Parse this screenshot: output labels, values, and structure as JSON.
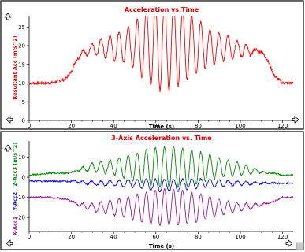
{
  "colors": {
    "frame": "#000000",
    "panel_bg": "#ffffff",
    "title": "#e00000",
    "resultant": "#ff0000",
    "x_axis": "#9a1a9a",
    "y_axis": "#1010ee",
    "z_axis": "#0a8a0a",
    "gray_bar": "#c8c8c8"
  },
  "icons": {
    "arrow_up": "up-arrow-icon",
    "arrow_left": "left-arrow-icon",
    "arrow_right": "right-arrow-icon",
    "resize": "resize-grip-icon"
  },
  "chart_data": [
    {
      "type": "line",
      "title": "Acceleration vs.Time",
      "xlabel": "Time (s)",
      "ylabel": "Resultant Acc (m/s^2)",
      "xlim": [
        0,
        125
      ],
      "ylim": [
        0,
        28
      ],
      "xticks": [
        "0",
        "20",
        "40",
        "60",
        "80",
        "100",
        "120"
      ],
      "yticks": [
        "0",
        "5",
        "10",
        "15",
        "20",
        "25"
      ],
      "grid": false,
      "series": [
        {
          "key": "resultant",
          "x": [
            0,
            10,
            17,
            20,
            22,
            25,
            30,
            35,
            40,
            45,
            50,
            55,
            60,
            62,
            65,
            70,
            75,
            80,
            85,
            90,
            95,
            100,
            105,
            110,
            113,
            116,
            120,
            125
          ],
          "y": [
            10,
            10,
            11,
            13,
            16,
            18,
            19,
            19.5,
            19.5,
            20,
            20,
            20,
            20,
            20,
            20,
            20,
            20,
            20,
            19.5,
            19.5,
            19.5,
            19,
            18.5,
            18.5,
            16,
            12,
            10,
            10
          ],
          "oscillation_amplitude": [
            0,
            0,
            0,
            0,
            0,
            0.5,
            1.5,
            2.5,
            3.5,
            4.5,
            6,
            10,
            11,
            12,
            12,
            11,
            9,
            7,
            5,
            4,
            3,
            2,
            1,
            0,
            0,
            0,
            0,
            0
          ],
          "period_s": 4.3
        }
      ]
    },
    {
      "type": "line",
      "title": "3-Axis Acceleration vs. Time",
      "xlabel": "Time (s)",
      "ylabel_parts": [
        "X-Acc1",
        "Y-Acc2",
        "Z-Acc3 (m/s^2)"
      ],
      "xlim": [
        0,
        125
      ],
      "ylim": [
        -27,
        18
      ],
      "xticks": [
        "0",
        "20",
        "40",
        "60",
        "80",
        "100",
        "120"
      ],
      "yticks": [
        "-20",
        "-10",
        "0",
        "10"
      ],
      "grid": false,
      "series": [
        {
          "key": "z",
          "x": [
            0,
            10,
            18,
            22,
            25,
            30,
            40,
            50,
            60,
            70,
            80,
            90,
            100,
            108,
            113,
            116,
            120,
            125
          ],
          "y": [
            1,
            2,
            2,
            3,
            4,
            5,
            5,
            5,
            5,
            5,
            5,
            5,
            4,
            3,
            2,
            2,
            1,
            1
          ],
          "oscillation_amplitude": [
            0,
            0,
            0,
            0,
            1,
            2,
            4,
            7,
            10,
            10,
            8,
            5,
            3,
            1,
            0,
            0,
            0,
            0
          ],
          "period_s": 4.3
        },
        {
          "key": "y",
          "x": [
            0,
            10,
            20,
            30,
            40,
            50,
            60,
            70,
            80,
            90,
            100,
            110,
            120,
            125
          ],
          "y": [
            -2,
            -2,
            -2,
            -3,
            -3,
            -3,
            -4,
            -4,
            -3,
            -3,
            -3,
            -3,
            -3,
            -3
          ],
          "oscillation_amplitude": [
            0,
            0,
            0.3,
            1,
            1.5,
            2,
            3,
            3,
            2.5,
            1.5,
            1,
            0.5,
            0,
            0
          ],
          "period_s": 4.3
        },
        {
          "key": "x",
          "x": [
            0,
            10,
            18,
            22,
            25,
            30,
            40,
            50,
            60,
            70,
            80,
            90,
            100,
            108,
            113,
            116,
            120,
            125
          ],
          "y": [
            -10,
            -10,
            -11,
            -13,
            -14,
            -15,
            -15,
            -15,
            -15,
            -15,
            -15,
            -15,
            -15,
            -14,
            -13,
            -12,
            -10,
            -10
          ],
          "oscillation_amplitude": [
            0,
            0,
            0,
            0.5,
            1,
            2,
            4,
            6,
            9,
            9,
            7,
            4,
            2,
            1,
            0,
            0,
            0,
            0
          ],
          "period_s": 4.3
        }
      ]
    }
  ]
}
